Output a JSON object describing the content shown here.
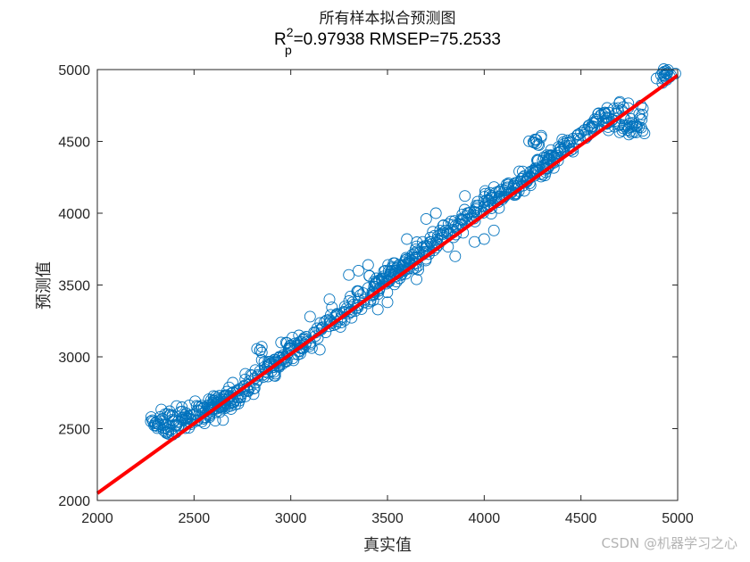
{
  "figure": {
    "title_line1": "所有样本拟合预测图",
    "title_r": "R",
    "title_sup": "2",
    "title_sub": "p",
    "title_metrics": "=0.97938  RMSEP=75.2533",
    "xlabel": "真实值",
    "ylabel": "预测值",
    "watermark": "CSDN @机器学习之心",
    "colors": {
      "marker": "#0072BD",
      "fit_line": "#FF0000",
      "axis": "#262626"
    }
  },
  "chart_data": {
    "type": "scatter",
    "title": "所有样本拟合预测图",
    "subtitle": "R_p^2=0.97938  RMSEP=75.2533",
    "xlabel": "真实值",
    "ylabel": "预测值",
    "xlim": [
      2000,
      5000
    ],
    "ylim": [
      2000,
      5000
    ],
    "xticks": [
      2000,
      2500,
      3000,
      3500,
      4000,
      4500,
      5000
    ],
    "yticks": [
      2000,
      2500,
      3000,
      3500,
      4000,
      4500,
      5000
    ],
    "grid": false,
    "legend": null,
    "metrics": {
      "R2_p": 0.97938,
      "RMSEP": 75.2533
    },
    "fit_line": {
      "x": [
        2000,
        5000
      ],
      "y": [
        2050,
        4960
      ]
    },
    "series": [
      {
        "name": "samples",
        "marker": "open-circle",
        "points": [
          [
            2300,
            2540
          ],
          [
            2320,
            2530
          ],
          [
            2350,
            2600
          ],
          [
            2380,
            2490
          ],
          [
            2400,
            2560
          ],
          [
            2420,
            2520
          ],
          [
            2440,
            2620
          ],
          [
            2460,
            2580
          ],
          [
            2480,
            2540
          ],
          [
            2500,
            2600
          ],
          [
            2520,
            2560
          ],
          [
            2540,
            2660
          ],
          [
            2560,
            2620
          ],
          [
            2580,
            2580
          ],
          [
            2600,
            2680
          ],
          [
            2620,
            2640
          ],
          [
            2640,
            2700
          ],
          [
            2660,
            2660
          ],
          [
            2680,
            2720
          ],
          [
            2700,
            2680
          ],
          [
            2720,
            2760
          ],
          [
            2740,
            2720
          ],
          [
            2760,
            2800
          ],
          [
            2780,
            2760
          ],
          [
            2800,
            2870
          ],
          [
            2820,
            2820
          ],
          [
            2840,
            2900
          ],
          [
            2850,
            3030
          ],
          [
            2860,
            2860
          ],
          [
            2880,
            2940
          ],
          [
            2900,
            2900
          ],
          [
            2920,
            2980
          ],
          [
            2940,
            2930
          ],
          [
            2960,
            3000
          ],
          [
            2980,
            2970
          ],
          [
            3000,
            3060
          ],
          [
            3020,
            3020
          ],
          [
            3040,
            3100
          ],
          [
            3060,
            3060
          ],
          [
            3080,
            3140
          ],
          [
            3100,
            3100
          ],
          [
            3120,
            3170
          ],
          [
            3140,
            3130
          ],
          [
            3160,
            3200
          ],
          [
            3180,
            3170
          ],
          [
            3200,
            3260
          ],
          [
            3220,
            3220
          ],
          [
            3240,
            3300
          ],
          [
            3260,
            3260
          ],
          [
            3280,
            3350
          ],
          [
            3300,
            3300
          ],
          [
            3320,
            3380
          ],
          [
            3340,
            3340
          ],
          [
            3360,
            3430
          ],
          [
            3380,
            3380
          ],
          [
            3400,
            3480
          ],
          [
            3420,
            3430
          ],
          [
            3440,
            3520
          ],
          [
            3460,
            3480
          ],
          [
            3480,
            3560
          ],
          [
            3500,
            3520
          ],
          [
            3520,
            3600
          ],
          [
            3540,
            3560
          ],
          [
            3560,
            3640
          ],
          [
            3580,
            3600
          ],
          [
            3600,
            3680
          ],
          [
            3620,
            3650
          ],
          [
            3640,
            3720
          ],
          [
            3660,
            3690
          ],
          [
            3680,
            3760
          ],
          [
            3700,
            3730
          ],
          [
            3720,
            3800
          ],
          [
            3740,
            3770
          ],
          [
            3760,
            3840
          ],
          [
            3780,
            3810
          ],
          [
            3800,
            3880
          ],
          [
            3820,
            3850
          ],
          [
            3840,
            3920
          ],
          [
            3860,
            3890
          ],
          [
            3880,
            3960
          ],
          [
            3900,
            3930
          ],
          [
            3920,
            4000
          ],
          [
            3940,
            3970
          ],
          [
            3960,
            4040
          ],
          [
            3980,
            4010
          ],
          [
            4000,
            4080
          ],
          [
            4020,
            4040
          ],
          [
            4040,
            4120
          ],
          [
            4060,
            4080
          ],
          [
            4080,
            4150
          ],
          [
            4100,
            4110
          ],
          [
            4120,
            4180
          ],
          [
            4140,
            4150
          ],
          [
            4160,
            4210
          ],
          [
            4180,
            4180
          ],
          [
            4200,
            4250
          ],
          [
            4220,
            4220
          ],
          [
            4240,
            4290
          ],
          [
            4260,
            4260
          ],
          [
            4270,
            4510
          ],
          [
            4280,
            4300
          ],
          [
            4300,
            4330
          ],
          [
            4320,
            4350
          ],
          [
            4340,
            4370
          ],
          [
            4360,
            4390
          ],
          [
            4380,
            4420
          ],
          [
            4400,
            4440
          ],
          [
            4420,
            4470
          ],
          [
            4440,
            4490
          ],
          [
            4460,
            4520
          ],
          [
            4480,
            4540
          ],
          [
            4500,
            4560
          ],
          [
            4520,
            4580
          ],
          [
            4540,
            4610
          ],
          [
            4560,
            4630
          ],
          [
            4580,
            4650
          ],
          [
            4600,
            4680
          ],
          [
            4620,
            4700
          ],
          [
            4640,
            4600
          ],
          [
            4660,
            4650
          ],
          [
            4680,
            4690
          ],
          [
            4700,
            4620
          ],
          [
            4720,
            4740
          ],
          [
            4740,
            4580
          ],
          [
            4760,
            4600
          ],
          [
            4780,
            4620
          ],
          [
            4800,
            4600
          ],
          [
            4820,
            4730
          ],
          [
            4930,
            4960
          ],
          [
            4960,
            4950
          ],
          [
            3300,
            3570
          ],
          [
            3350,
            3600
          ],
          [
            3400,
            3640
          ],
          [
            3450,
            3330
          ],
          [
            3500,
            3380
          ],
          [
            3700,
            3960
          ],
          [
            3750,
            4000
          ],
          [
            3850,
            3700
          ],
          [
            3950,
            3800
          ],
          [
            4050,
            3880
          ],
          [
            3200,
            3400
          ],
          [
            3150,
            3050
          ],
          [
            3600,
            3820
          ],
          [
            3650,
            3540
          ],
          [
            3900,
            4120
          ],
          [
            4000,
            3820
          ],
          [
            3100,
            3280
          ],
          [
            2950,
            3100
          ],
          [
            2700,
            2820
          ],
          [
            2650,
            2560
          ]
        ]
      }
    ]
  }
}
